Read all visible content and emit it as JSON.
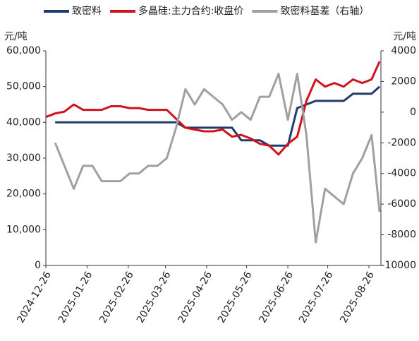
{
  "chart_data": {
    "type": "line",
    "x": [
      "2024-12-26",
      "2025-01-02",
      "2025-01-09",
      "2025-01-16",
      "2025-01-23",
      "2025-01-30",
      "2025-02-06",
      "2025-02-13",
      "2025-02-20",
      "2025-02-27",
      "2025-03-06",
      "2025-03-13",
      "2025-03-20",
      "2025-03-27",
      "2025-04-03",
      "2025-04-10",
      "2025-04-17",
      "2025-04-24",
      "2025-05-01",
      "2025-05-08",
      "2025-05-15",
      "2025-05-22",
      "2025-05-29",
      "2025-06-05",
      "2025-06-12",
      "2025-06-19",
      "2025-06-26",
      "2025-07-03",
      "2025-07-10",
      "2025-07-17",
      "2025-07-24",
      "2025-07-31",
      "2025-08-07",
      "2025-08-14",
      "2025-08-21",
      "2025-08-28",
      "2025-09-03"
    ],
    "series": [
      {
        "name": "致密料",
        "color": "#1f3c6e",
        "axis": "y",
        "values": [
          null,
          40000,
          40000,
          40000,
          40000,
          40000,
          40000,
          40000,
          40000,
          40000,
          40000,
          40000,
          40000,
          40000,
          40000,
          38500,
          38500,
          38500,
          38500,
          38500,
          38500,
          35000,
          35000,
          35000,
          33500,
          33500,
          33500,
          44000,
          45000,
          46000,
          46000,
          46000,
          46000,
          48000,
          48000,
          48000,
          50000
        ]
      },
      {
        "name": "多晶硅:主力合约:收盘价",
        "color": "#d0121b",
        "axis": "y",
        "values": [
          41500,
          42500,
          43000,
          45000,
          43500,
          43500,
          43500,
          44500,
          44500,
          44000,
          44000,
          43500,
          43500,
          43500,
          41000,
          38500,
          38000,
          37500,
          37500,
          38000,
          36000,
          36500,
          35500,
          34000,
          33500,
          31000,
          34000,
          36000,
          46000,
          52000,
          50000,
          51000,
          50000,
          52000,
          51000,
          52000,
          57000
        ]
      },
      {
        "name": "致密料基差（右轴）",
        "color": "#a0a0a0",
        "axis": "y2",
        "values": [
          null,
          -2000,
          -3500,
          -5000,
          -3500,
          -3500,
          -4500,
          -4500,
          -4500,
          -4000,
          -4000,
          -3500,
          -3500,
          -3000,
          -1000,
          1500,
          500,
          1500,
          1000,
          500,
          -500,
          0,
          -500,
          1000,
          1000,
          2500,
          -500,
          2500,
          -1500,
          -8500,
          -5000,
          -5500,
          -6000,
          -4000,
          -3000,
          -1500,
          -6500
        ]
      }
    ],
    "xlim": [
      "2024-12-26",
      "2025-09-04"
    ],
    "xticks": [
      "2024-12-26",
      "2025-01-26",
      "2025-02-26",
      "2025-03-26",
      "2025-04-26",
      "2025-05-26",
      "2025-06-26",
      "2025-07-26",
      "2025-08-26"
    ],
    "ylabel": "元/吨",
    "y2label": "元/吨",
    "ylim": [
      0,
      60000
    ],
    "yticks": [
      0,
      {
        "value": 10000,
        "label": "10,000"
      },
      {
        "value": 20000,
        "label": "20,000"
      },
      {
        "value": 30000,
        "label": "30,000"
      },
      {
        "value": 40000,
        "label": "40,000"
      },
      {
        "value": 50000,
        "label": "50,000"
      },
      {
        "value": 60000,
        "label": "60,000"
      }
    ],
    "y2lim": [
      -10000,
      4000
    ],
    "y2ticks": [
      -10000,
      -8000,
      -6000,
      -4000,
      -2000,
      0,
      2000,
      4000
    ],
    "legend": "top"
  }
}
